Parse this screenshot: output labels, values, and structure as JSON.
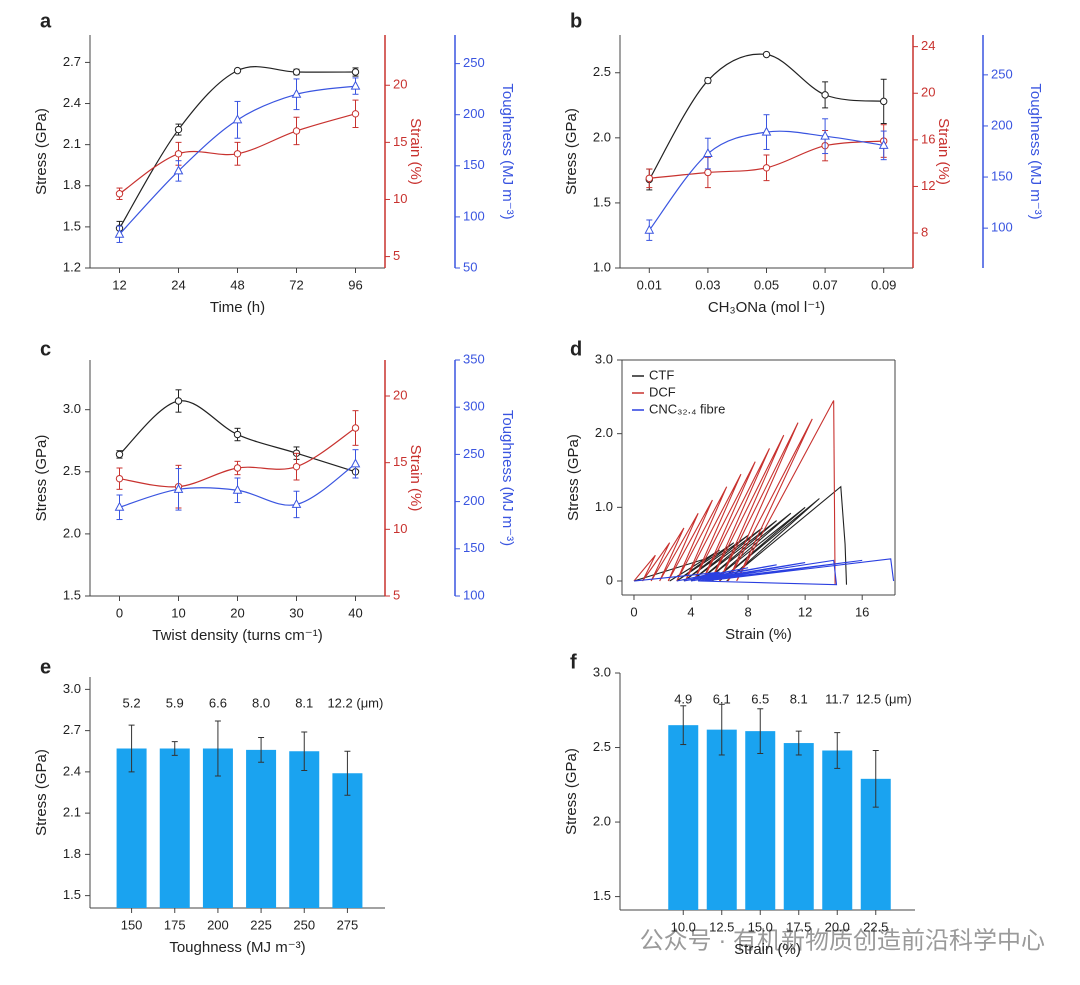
{
  "chart_data": [
    {
      "type": "line",
      "panel": "a",
      "xlabel": "Time (h)",
      "ylabel": "Stress (GPa)",
      "y2label": "Strain (%)",
      "y3label": "Toughness (MJ m⁻³)",
      "categories": [
        "12",
        "24",
        "48",
        "72",
        "96"
      ],
      "ylim": [
        1.2,
        2.9
      ],
      "yticks": [
        1.2,
        1.5,
        1.8,
        2.1,
        2.4,
        2.7
      ],
      "y2lim": [
        4,
        24.4
      ],
      "y2ticks": [
        5,
        10,
        15,
        20
      ],
      "y3lim": [
        50,
        278
      ],
      "y3ticks": [
        50,
        100,
        150,
        200,
        250
      ],
      "series": [
        {
          "color": "#222222",
          "marker": "circle",
          "axis": "y",
          "values": [
            1.49,
            2.21,
            2.64,
            2.63,
            2.63
          ],
          "errors": [
            0.05,
            0.04,
            0.01,
            0.02,
            0.03
          ]
        },
        {
          "color": "#c8322f",
          "marker": "circle",
          "axis": "y2",
          "values": [
            10.5,
            14,
            14,
            16,
            17.5
          ],
          "errors": [
            0.5,
            1.0,
            1.0,
            1.2,
            1.2
          ]
        },
        {
          "color": "#3a55e0",
          "marker": "triangle",
          "axis": "y3",
          "values": [
            83,
            145,
            195,
            220,
            228
          ],
          "errors": [
            8,
            10,
            18,
            15,
            8
          ]
        }
      ]
    },
    {
      "type": "line",
      "panel": "b",
      "xlabel": "CH₃ONa (mol l⁻¹)",
      "ylabel": "Stress (GPa)",
      "y2label": "Strain (%)",
      "y3label": "Toughness (MJ m⁻³)",
      "categories": [
        "0.01",
        "0.03",
        "0.05",
        "0.07",
        "0.09"
      ],
      "ylim": [
        1.0,
        2.79
      ],
      "yticks": [
        {
          "value": 1.0,
          "label": "1.0"
        },
        1.5,
        {
          "value": 2.0,
          "label": "2.0"
        },
        2.5
      ],
      "y2lim": [
        5,
        25
      ],
      "y2ticks": [
        8,
        12,
        16,
        20,
        24
      ],
      "y3lim": [
        61,
        289
      ],
      "y3ticks": [
        100,
        150,
        200,
        250
      ],
      "series": [
        {
          "color": "#222222",
          "marker": "circle",
          "axis": "y",
          "values": [
            1.68,
            2.44,
            2.64,
            2.33,
            2.28
          ],
          "errors": [
            0.08,
            0.02,
            0.01,
            0.1,
            0.17
          ]
        },
        {
          "color": "#c8322f",
          "marker": "circle",
          "axis": "y2",
          "values": [
            12.7,
            13.2,
            13.6,
            15.5,
            15.9
          ],
          "errors": [
            0.8,
            1.3,
            1.1,
            1.3,
            1.4
          ]
        },
        {
          "color": "#3a55e0",
          "marker": "triangle",
          "axis": "y3",
          "values": [
            98,
            173,
            194,
            190,
            181
          ],
          "errors": [
            10,
            15,
            17,
            17,
            14
          ]
        }
      ]
    },
    {
      "type": "line",
      "panel": "c",
      "xlabel": "Twist density (turns cm⁻¹)",
      "ylabel": "Stress (GPa)",
      "y2label": "Strain (%)",
      "y3label": "Toughness (MJ m⁻³)",
      "categories": [
        "0",
        "10",
        "20",
        "30",
        "40"
      ],
      "ylim": [
        1.5,
        3.4
      ],
      "yticks": [
        1.5,
        {
          "value": 2.0,
          "label": "2.0"
        },
        2.5,
        {
          "value": 3.0,
          "label": "3.0"
        }
      ],
      "y2lim": [
        5,
        22.7
      ],
      "y2ticks": [
        5,
        10,
        15,
        20
      ],
      "y3lim": [
        100,
        350
      ],
      "y3ticks": [
        100,
        150,
        200,
        250,
        300,
        350
      ],
      "series": [
        {
          "color": "#222222",
          "marker": "circle",
          "axis": "y",
          "values": [
            2.64,
            3.07,
            2.8,
            2.65,
            2.5
          ],
          "errors": [
            0.03,
            0.09,
            0.05,
            0.05,
            0.05
          ]
        },
        {
          "color": "#c8322f",
          "marker": "circle",
          "axis": "y2",
          "values": [
            13.8,
            13.2,
            14.6,
            14.7,
            17.6
          ],
          "errors": [
            0.8,
            1.6,
            0.5,
            1.0,
            1.3
          ]
        },
        {
          "color": "#3a55e0",
          "marker": "triangle",
          "axis": "y3",
          "values": [
            194,
            213,
            212,
            197,
            240
          ],
          "errors": [
            13,
            22,
            13,
            14,
            15
          ]
        }
      ]
    },
    {
      "type": "curve",
      "panel": "d",
      "xlabel": "Strain (%)",
      "ylabel": "Stress (GPa)",
      "xlim": [
        -0.84,
        18.3
      ],
      "xticks": [
        0,
        4,
        8,
        12,
        16
      ],
      "ylim": [
        -0.19,
        3.0
      ],
      "yticks": [
        0,
        {
          "value": 1,
          "label": "1.0"
        },
        {
          "value": 2,
          "label": "2.0"
        },
        {
          "value": 3,
          "label": "3.0"
        }
      ],
      "series": [
        {
          "name": "CTF",
          "color": "#222222",
          "x": [
            0,
            5,
            2.5,
            6,
            3,
            7,
            3.5,
            8,
            4,
            9,
            4.5,
            10,
            5,
            11,
            5.5,
            12,
            6,
            13,
            6.5,
            14.5,
            14.8,
            14.9
          ],
          "values": [
            0,
            0.3,
            0,
            0.42,
            0,
            0.52,
            0,
            0.62,
            0,
            0.72,
            0,
            0.82,
            0,
            0.92,
            0,
            1.0,
            0,
            1.12,
            0,
            1.28,
            0.5,
            -0.05
          ]
        },
        {
          "name": "DCF",
          "color": "#c8322f",
          "x": [
            0,
            1.5,
            0.6,
            2.5,
            1.2,
            3.5,
            1.8,
            4.5,
            2.4,
            5.5,
            3,
            6.5,
            3.6,
            7.5,
            4.2,
            8.5,
            4.8,
            9.5,
            5.4,
            10.5,
            6,
            11.5,
            6.6,
            12.5,
            7.2,
            14,
            14.1
          ],
          "values": [
            0,
            0.35,
            0,
            0.52,
            0,
            0.72,
            0,
            0.92,
            0,
            1.1,
            0,
            1.28,
            0,
            1.45,
            0,
            1.62,
            0,
            1.8,
            0,
            1.98,
            0,
            2.15,
            0,
            2.2,
            0,
            2.45,
            -0.05
          ]
        },
        {
          "name": "CNC₃₂.₄ fibre",
          "color": "#2a3fe0",
          "x": [
            0,
            6,
            3,
            8,
            3.5,
            10,
            4,
            12,
            4.5,
            14,
            14.2,
            4.5,
            16,
            5,
            18,
            18.2
          ],
          "values": [
            0,
            0.12,
            0,
            0.18,
            0,
            0.22,
            0,
            0.25,
            0,
            0.28,
            -0.05,
            0,
            0.28,
            0,
            0.3,
            0
          ]
        }
      ]
    },
    {
      "type": "bar",
      "panel": "e",
      "xlabel": "Toughness (MJ m⁻³)",
      "ylabel": "Stress (GPa)",
      "color": "#1aa3f0",
      "categories": [
        "150",
        "175",
        "200",
        "225",
        "250",
        "275"
      ],
      "values": [
        2.57,
        2.57,
        2.57,
        2.56,
        2.55,
        2.39
      ],
      "errors": [
        0.17,
        0.05,
        0.2,
        0.09,
        0.14,
        0.16
      ],
      "annotations": [
        "5.2",
        "5.9",
        "6.6",
        "8.0",
        "8.1",
        "12.2 (μm)"
      ],
      "ylim": [
        1.41,
        3.09
      ],
      "yticks": [
        1.5,
        1.8,
        2.1,
        2.4,
        2.7,
        {
          "value": 3.0,
          "label": "3.0"
        }
      ]
    },
    {
      "type": "bar",
      "panel": "f",
      "xlabel": "Strain (%)",
      "ylabel": "Stress (GPa)",
      "color": "#1aa3f0",
      "categories": [
        "10.0",
        "12.5",
        "15.0",
        "17.5",
        "20.0",
        "22.5"
      ],
      "values": [
        2.65,
        2.62,
        2.61,
        2.53,
        2.48,
        2.29
      ],
      "errors": [
        0.13,
        0.17,
        0.15,
        0.08,
        0.12,
        0.19
      ],
      "annotations": [
        "4.9",
        "6.1",
        "6.5",
        "8.1",
        "11.7",
        "12.5 (μm)"
      ],
      "ylim": [
        1.41,
        3.0
      ],
      "yticks": [
        1.5,
        {
          "value": 2.0,
          "label": "2.0"
        },
        2.5,
        {
          "value": 3.0,
          "label": "3.0"
        }
      ]
    }
  ],
  "watermark": "公众号 · 有机新物质创造前沿科学中心"
}
